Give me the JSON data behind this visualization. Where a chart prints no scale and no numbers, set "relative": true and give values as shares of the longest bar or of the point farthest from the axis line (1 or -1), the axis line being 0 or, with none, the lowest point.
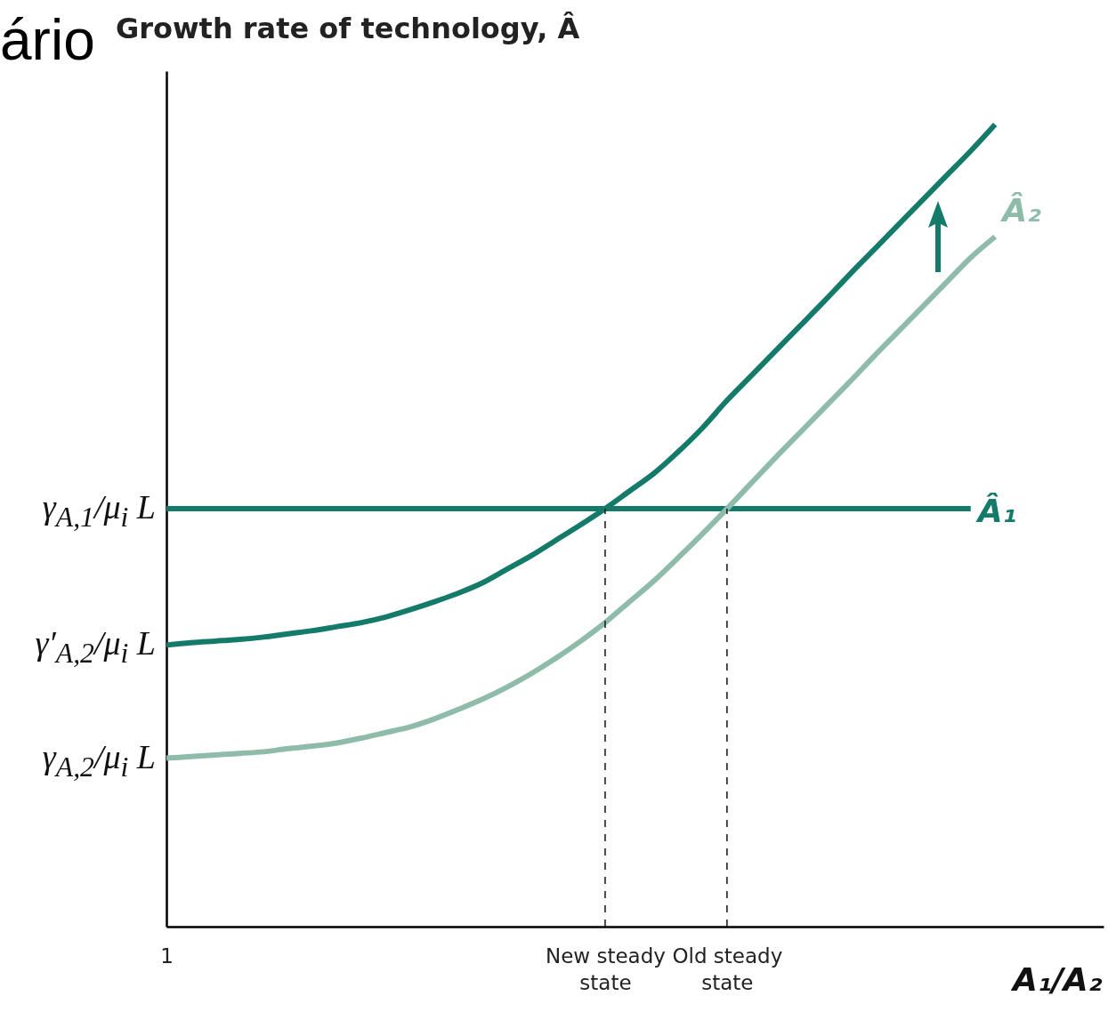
{
  "chart_data": {
    "type": "line",
    "title": "Growth rate of technology, Â",
    "xlabel": "A₁/A₂",
    "relative": true,
    "legend": false,
    "categories": [
      "1",
      null,
      null,
      null,
      null,
      null,
      null,
      null,
      null,
      null,
      null,
      null,
      null,
      null,
      null,
      null,
      null,
      null,
      "New steady state",
      null,
      null,
      null,
      null,
      "Old steady state",
      null,
      null,
      null,
      null,
      null,
      null,
      null,
      null,
      null,
      null,
      null
    ],
    "series": [
      {
        "name": "Â₁",
        "color": "#147a6a",
        "values": [
          0.521,
          0.521,
          0.521,
          0.521,
          0.521,
          0.521,
          0.521,
          0.521,
          0.521,
          0.521,
          0.521,
          0.521,
          0.521,
          0.521,
          0.521,
          0.521,
          0.521,
          0.521,
          0.521,
          0.521,
          0.521,
          0.521,
          0.521,
          0.521,
          0.521,
          0.521,
          0.521,
          0.521,
          0.521,
          0.521,
          0.521,
          0.521,
          0.521,
          0.521,
          null
        ]
      },
      {
        "color": "#147a6a",
        "values": [
          0.351,
          0.354,
          0.356,
          0.358,
          0.361,
          0.365,
          0.369,
          0.374,
          0.379,
          0.386,
          0.395,
          0.405,
          0.416,
          0.429,
          0.446,
          0.463,
          0.482,
          0.501,
          0.521,
          0.543,
          0.565,
          0.592,
          0.622,
          0.656,
          0.687,
          0.718,
          0.749,
          0.78,
          0.812,
          0.843,
          0.874,
          0.905,
          0.936,
          0.967,
          1
        ]
      },
      {
        "name": "Â₂",
        "color": "#8fbcaa",
        "values": [
          0.21,
          0.212,
          0.214,
          0.216,
          0.218,
          0.222,
          0.225,
          0.229,
          0.235,
          0.242,
          0.249,
          0.259,
          0.271,
          0.284,
          0.299,
          0.316,
          0.335,
          0.356,
          0.379,
          0.405,
          0.431,
          0.46,
          0.49,
          0.521,
          0.553,
          0.585,
          0.616,
          0.647,
          0.678,
          0.71,
          0.741,
          0.772,
          0.803,
          0.834,
          0.86
        ]
      }
    ],
    "ref_lines": [
      {
        "axis": "x",
        "value": "New steady state",
        "color": "#222222",
        "line_style": "dashed"
      },
      {
        "axis": "x",
        "value": "Old steady state",
        "color": "#222222",
        "line_style": "dashed"
      }
    ],
    "annotations": [
      "ário",
      {
        "text": "γ$_{A,1}$/μ$_{i}$ L",
        "x": "1",
        "y": 0.521
      },
      {
        "text": "γ′$_{A,2}$/μ$_{i}$ L",
        "x": "1",
        "y": 0.351
      },
      {
        "text": "γ$_{A,2}$/μ$_{i}$ L",
        "x": "1",
        "y": 0.21
      }
    ]
  }
}
